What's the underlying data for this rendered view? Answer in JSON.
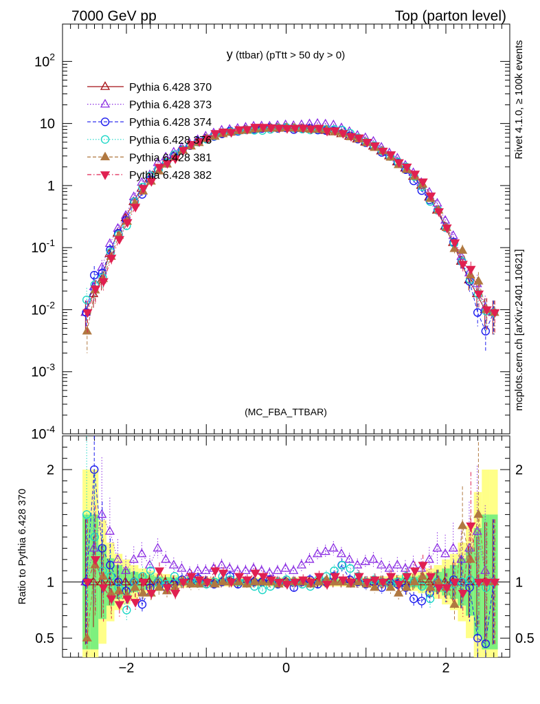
{
  "header": {
    "left": "7000 GeV pp",
    "right": "Top (parton level)"
  },
  "side_labels": {
    "rivet": "Rivet 4.1.0, ≥ 100k events",
    "mcplots": "mcplots.cern.ch [arXiv:2401.10621]"
  },
  "chart_data": {
    "type": "scatter",
    "title": "y (ttbar) (pTtt > 50 dy > 0)",
    "title_main": "y",
    "title_rest": " (ttbar) (pTtt > 50 dy > 0)",
    "watermark": "(MC_FBA_TTBAR)",
    "xlim": [
      -2.8,
      2.8
    ],
    "main_panel": {
      "yscale": "log",
      "ylim": [
        0.0001,
        400
      ],
      "ytick_labels": [
        {
          "base": "10",
          "exp": "-4"
        },
        {
          "base": "10",
          "exp": "-3"
        },
        {
          "base": "10",
          "exp": "-2"
        },
        {
          "base": "10",
          "exp": "-1"
        },
        {
          "base": "1",
          "exp": ""
        },
        {
          "base": "10",
          "exp": ""
        },
        {
          "base": "10",
          "exp": "2"
        }
      ]
    },
    "ratio_panel": {
      "ylabel": "Ratio to Pythia 6.428 370",
      "ylim": [
        0.33,
        2.3
      ],
      "ytick_labels": [
        "0.5",
        "1",
        "2"
      ]
    },
    "xtick_labels": [
      "−2",
      "0",
      "2"
    ],
    "legend": [
      {
        "name": "Pythia 6.428 370",
        "color": "#a50f15",
        "marker": "triangle-open",
        "dash": "solid"
      },
      {
        "name": "Pythia 6.428 373",
        "color": "#8a2be2",
        "marker": "triangle-open",
        "dash": "dotted"
      },
      {
        "name": "Pythia 6.428 374",
        "color": "#1a1aee",
        "marker": "circle-open",
        "dash": "dashed"
      },
      {
        "name": "Pythia 6.428 376",
        "color": "#1ad6c6",
        "marker": "circle-open",
        "dash": "dotted"
      },
      {
        "name": "Pythia 6.428 381",
        "color": "#b07840",
        "marker": "triangle-filled",
        "dash": "dashed"
      },
      {
        "name": "Pythia 6.428 382",
        "color": "#e02050",
        "marker": "triangle-down-filled",
        "dash": "dashdot"
      }
    ],
    "x": [
      -2.5,
      -2.4,
      -2.3,
      -2.2,
      -2.1,
      -2.0,
      -1.9,
      -1.8,
      -1.7,
      -1.6,
      -1.5,
      -1.4,
      -1.3,
      -1.2,
      -1.1,
      -1.0,
      -0.9,
      -0.8,
      -0.7,
      -0.6,
      -0.5,
      -0.4,
      -0.3,
      -0.2,
      -0.1,
      0.0,
      0.1,
      0.2,
      0.3,
      0.4,
      0.5,
      0.6,
      0.7,
      0.8,
      0.9,
      1.0,
      1.1,
      1.2,
      1.3,
      1.4,
      1.5,
      1.6,
      1.7,
      1.8,
      1.9,
      2.0,
      2.1,
      2.2,
      2.3,
      2.4,
      2.5,
      2.6
    ],
    "reference_values": [
      0.009,
      0.018,
      0.03,
      0.08,
      0.17,
      0.3,
      0.55,
      0.9,
      1.3,
      1.8,
      2.4,
      3.0,
      3.7,
      4.4,
      5.0,
      5.7,
      6.3,
      6.8,
      7.2,
      7.6,
      7.9,
      8.1,
      8.3,
      8.4,
      8.5,
      8.5,
      8.4,
      8.3,
      8.2,
      8.0,
      7.7,
      7.3,
      6.8,
      6.2,
      5.6,
      5.0,
      4.3,
      3.6,
      3.0,
      2.4,
      1.9,
      1.4,
      1.0,
      0.65,
      0.4,
      0.22,
      0.12,
      0.06,
      0.03,
      0.018,
      0.01,
      0.009
    ],
    "series": [
      {
        "name": "Pythia 6.428 370",
        "ratios": [
          1.0,
          1.0,
          1.0,
          1.0,
          1.0,
          1.0,
          1.0,
          1.0,
          1.0,
          1.0,
          1.0,
          1.0,
          1.0,
          1.0,
          1.0,
          1.0,
          1.0,
          1.0,
          1.0,
          1.0,
          1.0,
          1.0,
          1.0,
          1.0,
          1.0,
          1.0,
          1.0,
          1.0,
          1.0,
          1.0,
          1.0,
          1.0,
          1.0,
          1.0,
          1.0,
          1.0,
          1.0,
          1.0,
          1.0,
          1.0,
          1.0,
          1.0,
          1.0,
          1.0,
          1.0,
          1.0,
          1.0,
          1.0,
          1.0,
          1.0,
          1.0,
          1.0
        ]
      },
      {
        "name": "Pythia 6.428 373",
        "ratios": [
          1.0,
          1.3,
          1.6,
          1.45,
          1.2,
          1.1,
          1.2,
          1.25,
          1.15,
          1.3,
          1.2,
          1.15,
          1.12,
          1.08,
          1.1,
          1.1,
          1.12,
          1.15,
          1.12,
          1.1,
          1.1,
          1.12,
          1.1,
          1.08,
          1.1,
          1.12,
          1.1,
          1.15,
          1.2,
          1.25,
          1.27,
          1.3,
          1.25,
          1.2,
          1.15,
          1.18,
          1.2,
          1.15,
          1.12,
          1.15,
          1.12,
          1.15,
          1.12,
          1.2,
          1.3,
          1.25,
          1.3,
          1.2,
          1.3,
          1.45,
          1.1,
          1.0
        ]
      },
      {
        "name": "Pythia 6.428 374",
        "ratios": [
          1.0,
          2.0,
          1.3,
          1.15,
          1.0,
          0.92,
          1.0,
          0.8,
          0.95,
          1.0,
          0.95,
          0.98,
          1.02,
          1.0,
          1.03,
          1.0,
          0.98,
          1.0,
          1.05,
          0.98,
          1.0,
          1.0,
          1.0,
          1.02,
          0.98,
          1.0,
          0.95,
          1.0,
          1.02,
          0.98,
          1.0,
          1.05,
          1.15,
          1.02,
          1.0,
          0.98,
          1.0,
          0.95,
          1.0,
          0.98,
          0.95,
          0.85,
          0.83,
          0.9,
          1.0,
          0.95,
          1.02,
          1.0,
          0.95,
          0.5,
          0.45,
          1.0
        ]
      },
      {
        "name": "Pythia 6.428 376",
        "ratios": [
          1.6,
          1.4,
          1.1,
          1.05,
          0.95,
          0.75,
          1.0,
          1.05,
          1.1,
          1.0,
          0.98,
          1.05,
          1.0,
          1.02,
          1.0,
          0.98,
          1.0,
          1.05,
          1.02,
          1.0,
          1.0,
          0.96,
          0.93,
          0.96,
          1.0,
          1.02,
          1.0,
          0.98,
          0.96,
          1.02,
          1.05,
          1.1,
          1.15,
          1.12,
          1.05,
          1.0,
          1.02,
          1.0,
          0.98,
          1.0,
          1.05,
          1.0,
          0.96,
          0.85,
          1.0,
          0.95,
          0.98,
          1.0,
          1.02,
          1.0,
          0.95,
          1.0
        ]
      },
      {
        "name": "Pythia 6.428 381",
        "ratios": [
          0.5,
          1.15,
          1.05,
          0.9,
          0.92,
          0.88,
          0.95,
          0.9,
          0.9,
          0.95,
          0.92,
          0.95,
          1.0,
          0.98,
          0.98,
          1.0,
          0.98,
          1.0,
          1.0,
          1.0,
          0.98,
          1.0,
          1.0,
          1.0,
          0.98,
          1.0,
          1.0,
          1.0,
          0.98,
          1.0,
          1.02,
          1.0,
          1.0,
          0.98,
          1.0,
          0.98,
          0.95,
          1.0,
          0.95,
          0.9,
          0.95,
          1.0,
          1.05,
          0.95,
          1.0,
          0.95,
          0.8,
          1.5,
          1.2,
          1.6,
          1.0,
          1.0
        ]
      },
      {
        "name": "Pythia 6.428 382",
        "ratios": [
          1.0,
          1.2,
          0.95,
          0.85,
          0.8,
          0.85,
          0.82,
          1.0,
          0.9,
          1.1,
          0.95,
          0.9,
          1.0,
          1.05,
          1.02,
          1.0,
          1.1,
          1.08,
          1.0,
          1.05,
          1.02,
          1.08,
          1.05,
          1.02,
          1.0,
          0.98,
          1.0,
          1.02,
          1.0,
          1.05,
          0.98,
          1.05,
          1.02,
          1.0,
          1.05,
          1.0,
          1.02,
          1.0,
          1.05,
          0.98,
          1.05,
          1.1,
          1.15,
          1.05,
          0.95,
          0.95,
          1.0,
          0.9,
          1.5,
          1.0,
          1.0,
          1.0
        ]
      }
    ],
    "uncertainty_bands": {
      "inner_color": "#7ef07e",
      "outer_color": "#ffff88",
      "half_width": [
        1.0,
        1.0,
        0.55,
        0.35,
        0.25,
        0.2,
        0.15,
        0.12,
        0.1,
        0.08,
        0.07,
        0.06,
        0.05,
        0.05,
        0.04,
        0.04,
        0.04,
        0.04,
        0.04,
        0.04,
        0.04,
        0.04,
        0.04,
        0.04,
        0.04,
        0.04,
        0.04,
        0.04,
        0.04,
        0.04,
        0.04,
        0.04,
        0.04,
        0.04,
        0.04,
        0.04,
        0.05,
        0.05,
        0.05,
        0.06,
        0.07,
        0.08,
        0.1,
        0.12,
        0.15,
        0.2,
        0.25,
        0.35,
        0.5,
        0.8,
        1.0,
        1.0
      ]
    }
  }
}
